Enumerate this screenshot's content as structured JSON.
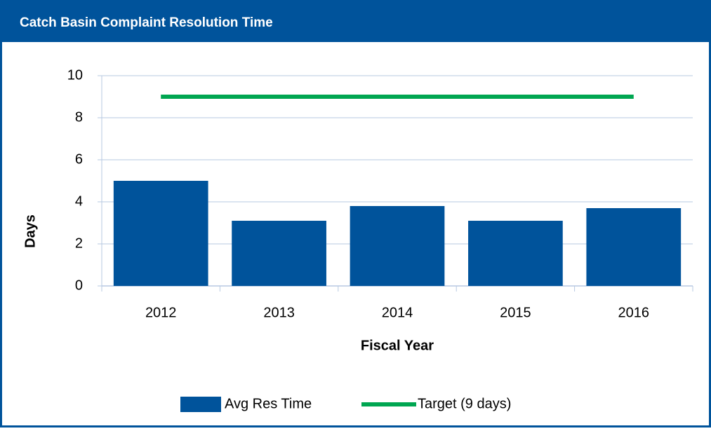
{
  "chart_data": {
    "type": "bar",
    "title": "Catch Basin Complaint Resolution Time",
    "x_label": "Fiscal Year",
    "y_label": "Days",
    "categories": [
      "2012",
      "2013",
      "2014",
      "2015",
      "2016"
    ],
    "series": [
      {
        "name": "Avg Res Time",
        "type": "bar",
        "color": "#00539b",
        "values": [
          5.0,
          3.1,
          3.8,
          3.1,
          3.7
        ]
      },
      {
        "name": "Target (9 days)",
        "type": "line",
        "color": "#00a651",
        "values": [
          9,
          9,
          9,
          9,
          9
        ]
      }
    ],
    "ylim": [
      0,
      10
    ],
    "yticks": [
      0,
      2,
      4,
      6,
      8,
      10
    ],
    "grid": true,
    "legend": "bottom"
  }
}
